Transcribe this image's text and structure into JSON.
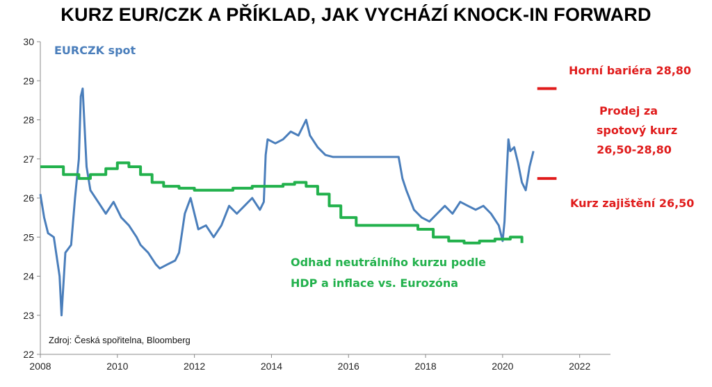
{
  "title": "KURZ EUR/CZK A PŘÍKLAD, JAK VYCHÁZÍ KNOCK-IN FORWARD",
  "source": "Zdroj: Česká spořitelna, Bloomberg",
  "colors": {
    "spot": "#4A7EBB",
    "neutral": "#22B14C",
    "barrier": "#E01B1B",
    "axis": "#888888"
  },
  "annotations": {
    "upper_barrier": "Horní bariéra 28,80",
    "sell_line1": "Prodej za",
    "sell_line2": "spotový kurz",
    "sell_line3": "26,50-28,80",
    "hedge": "Kurz zajištění 26,50",
    "neutral_line1": "Odhad neutrálního kurzu podle",
    "neutral_line2": "HDP a inflace vs. Eurozóna"
  },
  "chart_data": {
    "type": "line",
    "xlim": [
      2008,
      2022.8
    ],
    "ylim": [
      22,
      30
    ],
    "x_ticks": [
      "2008",
      "2010",
      "2012",
      "2014",
      "2016",
      "2018",
      "2020",
      "2022"
    ],
    "y_ticks": [
      "22",
      "23",
      "24",
      "25",
      "26",
      "27",
      "28",
      "29",
      "30"
    ],
    "series": [
      {
        "name": "EURCZK spot",
        "x": [
          2008.0,
          2008.1,
          2008.2,
          2008.35,
          2008.5,
          2008.55,
          2008.65,
          2008.8,
          2008.9,
          2009.0,
          2009.05,
          2009.1,
          2009.2,
          2009.3,
          2009.5,
          2009.7,
          2009.9,
          2010.1,
          2010.3,
          2010.5,
          2010.6,
          2010.8,
          2011.0,
          2011.1,
          2011.3,
          2011.5,
          2011.6,
          2011.75,
          2011.9,
          2012.1,
          2012.3,
          2012.5,
          2012.7,
          2012.9,
          2013.1,
          2013.3,
          2013.5,
          2013.7,
          2013.8,
          2013.85,
          2013.9,
          2014.1,
          2014.3,
          2014.5,
          2014.7,
          2014.9,
          2015.0,
          2015.2,
          2015.4,
          2015.6,
          2015.8,
          2016.0,
          2016.5,
          2017.0,
          2017.3,
          2017.4,
          2017.5,
          2017.7,
          2017.9,
          2018.1,
          2018.3,
          2018.5,
          2018.7,
          2018.9,
          2019.1,
          2019.3,
          2019.5,
          2019.7,
          2019.9,
          2020.0,
          2020.05,
          2020.1,
          2020.15,
          2020.2,
          2020.3,
          2020.4,
          2020.5,
          2020.6,
          2020.7,
          2020.8
        ],
        "y": [
          26.1,
          25.5,
          25.1,
          25.0,
          24.0,
          23.0,
          24.6,
          24.8,
          26.0,
          27.0,
          28.6,
          28.8,
          26.8,
          26.2,
          25.9,
          25.6,
          25.9,
          25.5,
          25.3,
          25.0,
          24.8,
          24.6,
          24.3,
          24.2,
          24.3,
          24.4,
          24.6,
          25.6,
          26.0,
          25.2,
          25.3,
          25.0,
          25.3,
          25.8,
          25.6,
          25.8,
          26.0,
          25.7,
          25.9,
          27.1,
          27.5,
          27.4,
          27.5,
          27.7,
          27.6,
          28.0,
          27.6,
          27.3,
          27.1,
          27.05,
          27.05,
          27.05,
          27.05,
          27.05,
          27.05,
          26.5,
          26.2,
          25.7,
          25.5,
          25.4,
          25.6,
          25.8,
          25.6,
          25.9,
          25.8,
          25.7,
          25.8,
          25.6,
          25.3,
          24.9,
          25.4,
          26.5,
          27.5,
          27.2,
          27.3,
          26.9,
          26.4,
          26.2,
          26.8,
          27.2
        ]
      },
      {
        "name": "neutral",
        "x": [
          2008.0,
          2008.3,
          2008.6,
          2009.0,
          2009.3,
          2009.7,
          2010.0,
          2010.3,
          2010.6,
          2010.9,
          2011.2,
          2011.6,
          2012.0,
          2012.5,
          2013.0,
          2013.5,
          2014.0,
          2014.3,
          2014.6,
          2014.9,
          2015.2,
          2015.5,
          2015.8,
          2016.2,
          2016.6,
          2017.0,
          2017.4,
          2017.8,
          2018.2,
          2018.6,
          2019.0,
          2019.4,
          2019.8,
          2020.2,
          2020.5
        ],
        "y": [
          26.8,
          26.8,
          26.6,
          26.5,
          26.6,
          26.75,
          26.9,
          26.8,
          26.6,
          26.4,
          26.3,
          26.25,
          26.2,
          26.2,
          26.25,
          26.3,
          26.3,
          26.35,
          26.4,
          26.3,
          26.1,
          25.8,
          25.5,
          25.3,
          25.3,
          25.3,
          25.3,
          25.2,
          25.0,
          24.9,
          24.85,
          24.9,
          24.95,
          25.0,
          24.85
        ]
      }
    ],
    "reference_lines": [
      {
        "label": "Horní bariéra 28,80",
        "y": 28.8,
        "x_range": [
          2020.9,
          2021.4
        ]
      },
      {
        "label": "Kurz zajištění 26,50",
        "y": 26.5,
        "x_range": [
          2020.9,
          2021.4
        ]
      }
    ]
  }
}
